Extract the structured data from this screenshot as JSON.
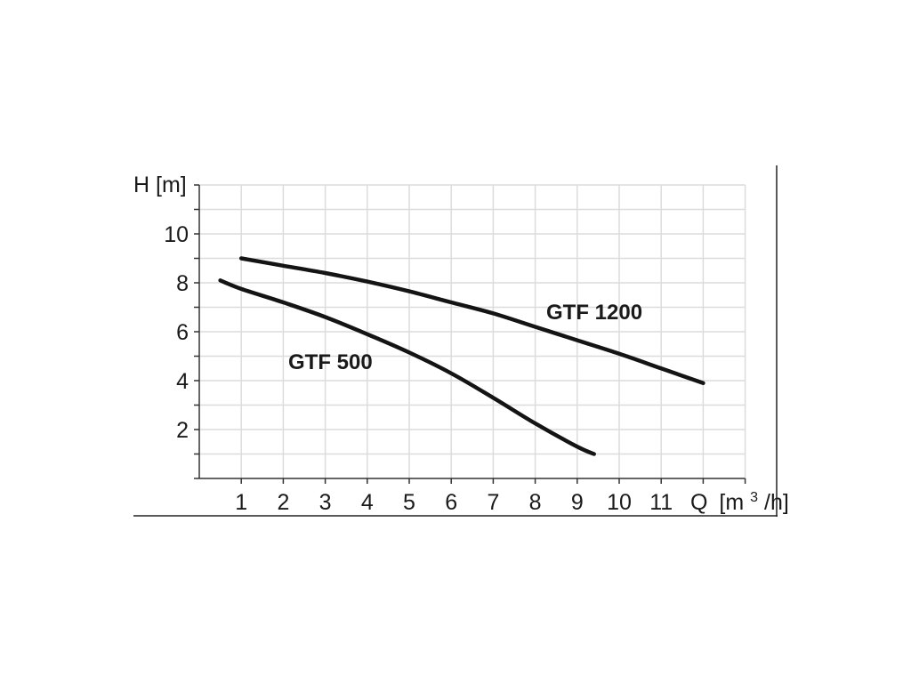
{
  "chart_data": {
    "type": "line",
    "title": "",
    "xlabel": "Q [m3/h]",
    "ylabel": "H [m]",
    "xlim": [
      0,
      13
    ],
    "ylim": [
      0,
      12
    ],
    "xticks": [
      1,
      2,
      3,
      4,
      5,
      6,
      7,
      8,
      9,
      10,
      11
    ],
    "yticks": [
      2,
      4,
      6,
      8,
      10
    ],
    "grid": true,
    "legend": "inline labels",
    "series": [
      {
        "name": "GTF 500",
        "x": [
          0.5,
          1,
          2,
          3,
          4,
          5,
          6,
          7,
          8,
          9,
          9.4
        ],
        "y": [
          8.1,
          7.75,
          7.2,
          6.6,
          5.9,
          5.15,
          4.3,
          3.3,
          2.25,
          1.3,
          1.0
        ]
      },
      {
        "name": "GTF 1200",
        "x": [
          1,
          2,
          3,
          4,
          5,
          6,
          7,
          8,
          9,
          10,
          11,
          12
        ],
        "y": [
          9.0,
          8.7,
          8.4,
          8.05,
          7.65,
          7.2,
          6.75,
          6.2,
          5.65,
          5.1,
          4.5,
          3.9
        ]
      }
    ],
    "colors": {
      "line": "#141414",
      "grid": "#dcdcdc",
      "axis": "#333333"
    }
  },
  "labels": {
    "y_axis_title": "H [m]",
    "x_axis_q": "Q",
    "x_axis_unit_open": "[m",
    "x_axis_unit_sup": "3",
    "x_axis_unit_close": "/h]",
    "series_gtf500": "GTF 500",
    "series_gtf1200": "GTF 1200"
  }
}
